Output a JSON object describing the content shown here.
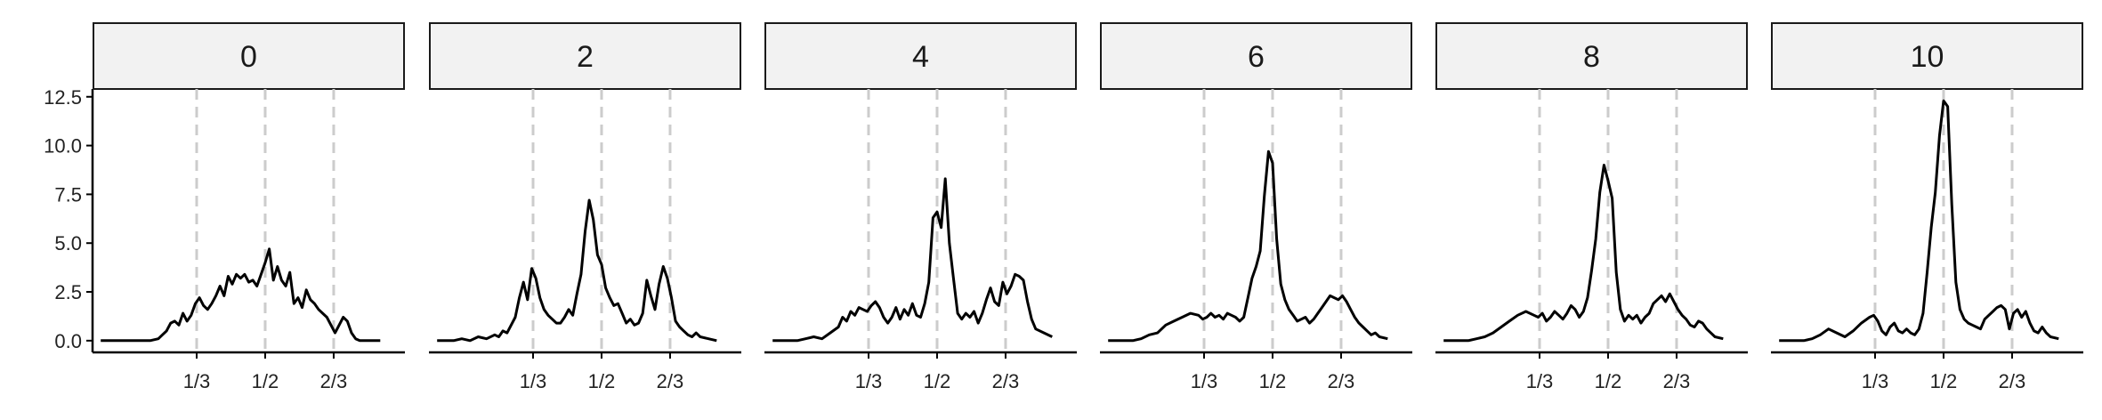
{
  "chart_data": {
    "type": "line",
    "title": "",
    "xlabel": "",
    "ylabel": "",
    "ylim": [
      -0.6,
      12.9
    ],
    "yticks": [
      0.0,
      2.5,
      5.0,
      7.5,
      10.0,
      12.5
    ],
    "ytick_labels": [
      "0.0",
      "2.5",
      "5.0",
      "7.5",
      "10.0",
      "12.5"
    ],
    "xlim": [
      0.08,
      0.84
    ],
    "xticks": [
      0.3333,
      0.5,
      0.6667
    ],
    "xtick_labels": [
      "1/3",
      "1/2",
      "2/3"
    ],
    "reference_lines": [
      0.3333,
      0.5,
      0.6667
    ],
    "grid": false,
    "colors": {
      "line": "#000000",
      "reference": "#cccccc",
      "strip_fill": "#f2f2f2",
      "strip_border": "#1a1a1a"
    },
    "panels": [
      {
        "label": "0",
        "x": [
          0.1,
          0.12,
          0.14,
          0.16,
          0.18,
          0.2,
          0.22,
          0.24,
          0.26,
          0.27,
          0.28,
          0.29,
          0.3,
          0.31,
          0.32,
          0.33,
          0.34,
          0.35,
          0.36,
          0.37,
          0.38,
          0.39,
          0.4,
          0.41,
          0.42,
          0.43,
          0.44,
          0.45,
          0.46,
          0.47,
          0.48,
          0.49,
          0.5,
          0.51,
          0.52,
          0.53,
          0.54,
          0.55,
          0.56,
          0.57,
          0.58,
          0.59,
          0.6,
          0.61,
          0.62,
          0.63,
          0.64,
          0.65,
          0.66,
          0.67,
          0.68,
          0.69,
          0.7,
          0.71,
          0.72,
          0.73,
          0.74,
          0.76,
          0.78
        ],
        "y": [
          0,
          0,
          0,
          0,
          0,
          0,
          0,
          0.1,
          0.5,
          0.9,
          1.0,
          0.8,
          1.4,
          1.0,
          1.3,
          1.9,
          2.2,
          1.8,
          1.6,
          1.9,
          2.3,
          2.8,
          2.3,
          3.3,
          2.9,
          3.4,
          3.2,
          3.4,
          3.0,
          3.1,
          2.8,
          3.4,
          4.0,
          4.7,
          3.1,
          3.8,
          3.1,
          2.8,
          3.5,
          1.9,
          2.2,
          1.7,
          2.6,
          2.1,
          1.9,
          1.6,
          1.4,
          1.2,
          0.8,
          0.4,
          0.8,
          1.2,
          1.0,
          0.4,
          0.1,
          0,
          0,
          0,
          0
        ]
      },
      {
        "label": "2",
        "x": [
          0.1,
          0.12,
          0.14,
          0.16,
          0.18,
          0.2,
          0.22,
          0.24,
          0.25,
          0.26,
          0.27,
          0.28,
          0.29,
          0.3,
          0.31,
          0.32,
          0.33,
          0.34,
          0.35,
          0.36,
          0.37,
          0.38,
          0.39,
          0.4,
          0.41,
          0.42,
          0.43,
          0.44,
          0.45,
          0.46,
          0.47,
          0.48,
          0.49,
          0.5,
          0.51,
          0.52,
          0.53,
          0.54,
          0.55,
          0.56,
          0.57,
          0.58,
          0.59,
          0.6,
          0.61,
          0.62,
          0.63,
          0.64,
          0.65,
          0.66,
          0.67,
          0.68,
          0.69,
          0.7,
          0.71,
          0.72,
          0.73,
          0.74,
          0.76,
          0.78
        ],
        "y": [
          0,
          0,
          0,
          0.1,
          0,
          0.2,
          0.1,
          0.3,
          0.2,
          0.5,
          0.4,
          0.8,
          1.2,
          2.2,
          3.0,
          2.1,
          3.7,
          3.2,
          2.2,
          1.6,
          1.3,
          1.1,
          0.9,
          0.9,
          1.2,
          1.6,
          1.3,
          2.4,
          3.4,
          5.6,
          7.2,
          6.2,
          4.4,
          3.9,
          2.7,
          2.2,
          1.8,
          1.9,
          1.4,
          0.9,
          1.1,
          0.8,
          0.9,
          1.4,
          3.1,
          2.3,
          1.6,
          2.9,
          3.8,
          3.2,
          2.2,
          1.0,
          0.7,
          0.5,
          0.3,
          0.2,
          0.4,
          0.2,
          0.1,
          0
        ]
      },
      {
        "label": "4",
        "x": [
          0.1,
          0.12,
          0.14,
          0.16,
          0.18,
          0.2,
          0.22,
          0.24,
          0.26,
          0.27,
          0.28,
          0.29,
          0.3,
          0.31,
          0.32,
          0.33,
          0.34,
          0.35,
          0.36,
          0.37,
          0.38,
          0.39,
          0.4,
          0.41,
          0.42,
          0.43,
          0.44,
          0.45,
          0.46,
          0.47,
          0.48,
          0.49,
          0.5,
          0.51,
          0.52,
          0.53,
          0.54,
          0.55,
          0.56,
          0.57,
          0.58,
          0.59,
          0.6,
          0.61,
          0.62,
          0.63,
          0.64,
          0.65,
          0.66,
          0.67,
          0.68,
          0.69,
          0.7,
          0.71,
          0.72,
          0.73,
          0.74,
          0.76,
          0.78
        ],
        "y": [
          0,
          0,
          0,
          0,
          0.1,
          0.2,
          0.1,
          0.4,
          0.7,
          1.2,
          1.0,
          1.5,
          1.3,
          1.7,
          1.6,
          1.5,
          1.8,
          2.0,
          1.7,
          1.2,
          0.9,
          1.2,
          1.7,
          1.1,
          1.6,
          1.3,
          1.9,
          1.3,
          1.2,
          1.9,
          3.0,
          6.3,
          6.6,
          5.8,
          8.3,
          5.0,
          3.2,
          1.4,
          1.1,
          1.4,
          1.2,
          1.5,
          0.9,
          1.4,
          2.1,
          2.7,
          2.0,
          1.8,
          3.0,
          2.4,
          2.8,
          3.4,
          3.3,
          3.1,
          2.0,
          1.1,
          0.6,
          0.4,
          0.2
        ]
      },
      {
        "label": "6",
        "x": [
          0.1,
          0.12,
          0.14,
          0.16,
          0.18,
          0.2,
          0.22,
          0.24,
          0.26,
          0.28,
          0.3,
          0.32,
          0.33,
          0.34,
          0.35,
          0.36,
          0.37,
          0.38,
          0.39,
          0.4,
          0.41,
          0.42,
          0.43,
          0.44,
          0.45,
          0.46,
          0.47,
          0.48,
          0.49,
          0.5,
          0.51,
          0.52,
          0.53,
          0.54,
          0.55,
          0.56,
          0.57,
          0.58,
          0.59,
          0.6,
          0.61,
          0.62,
          0.63,
          0.64,
          0.65,
          0.66,
          0.67,
          0.68,
          0.69,
          0.7,
          0.71,
          0.72,
          0.73,
          0.74,
          0.75,
          0.76,
          0.78
        ],
        "y": [
          0,
          0,
          0,
          0,
          0.1,
          0.3,
          0.4,
          0.8,
          1.0,
          1.2,
          1.4,
          1.3,
          1.1,
          1.2,
          1.4,
          1.2,
          1.3,
          1.1,
          1.4,
          1.3,
          1.2,
          1.0,
          1.2,
          2.2,
          3.2,
          3.8,
          4.6,
          7.4,
          9.7,
          9.1,
          5.2,
          2.9,
          2.1,
          1.6,
          1.3,
          1.0,
          1.1,
          1.2,
          0.9,
          1.1,
          1.4,
          1.7,
          2.0,
          2.3,
          2.2,
          2.1,
          2.3,
          2.0,
          1.6,
          1.2,
          0.9,
          0.7,
          0.5,
          0.3,
          0.4,
          0.2,
          0.1
        ]
      },
      {
        "label": "8",
        "x": [
          0.1,
          0.12,
          0.14,
          0.16,
          0.18,
          0.2,
          0.22,
          0.24,
          0.26,
          0.28,
          0.3,
          0.32,
          0.33,
          0.34,
          0.35,
          0.36,
          0.37,
          0.38,
          0.39,
          0.4,
          0.41,
          0.42,
          0.43,
          0.44,
          0.45,
          0.46,
          0.47,
          0.48,
          0.49,
          0.5,
          0.51,
          0.52,
          0.53,
          0.54,
          0.55,
          0.56,
          0.57,
          0.58,
          0.59,
          0.6,
          0.61,
          0.62,
          0.63,
          0.64,
          0.65,
          0.66,
          0.67,
          0.68,
          0.69,
          0.7,
          0.71,
          0.72,
          0.73,
          0.74,
          0.75,
          0.76,
          0.78
        ],
        "y": [
          0,
          0,
          0,
          0,
          0.1,
          0.2,
          0.4,
          0.7,
          1.0,
          1.3,
          1.5,
          1.3,
          1.2,
          1.4,
          1.0,
          1.2,
          1.5,
          1.3,
          1.1,
          1.4,
          1.8,
          1.6,
          1.2,
          1.5,
          2.2,
          3.6,
          5.2,
          7.6,
          9.0,
          8.2,
          7.3,
          3.5,
          1.6,
          1.0,
          1.3,
          1.1,
          1.3,
          0.9,
          1.2,
          1.4,
          1.9,
          2.1,
          2.3,
          2.0,
          2.4,
          2.0,
          1.6,
          1.3,
          1.1,
          0.8,
          0.7,
          1.0,
          0.9,
          0.6,
          0.4,
          0.2,
          0.1
        ]
      },
      {
        "label": "10",
        "x": [
          0.1,
          0.12,
          0.14,
          0.16,
          0.18,
          0.2,
          0.22,
          0.24,
          0.26,
          0.28,
          0.3,
          0.32,
          0.33,
          0.34,
          0.35,
          0.36,
          0.37,
          0.38,
          0.39,
          0.4,
          0.41,
          0.42,
          0.43,
          0.44,
          0.45,
          0.46,
          0.47,
          0.48,
          0.49,
          0.5,
          0.51,
          0.52,
          0.53,
          0.54,
          0.55,
          0.56,
          0.57,
          0.58,
          0.59,
          0.6,
          0.61,
          0.62,
          0.63,
          0.64,
          0.65,
          0.66,
          0.67,
          0.68,
          0.69,
          0.7,
          0.71,
          0.72,
          0.73,
          0.74,
          0.75,
          0.76,
          0.78
        ],
        "y": [
          0,
          0,
          0,
          0,
          0.1,
          0.3,
          0.6,
          0.4,
          0.2,
          0.5,
          0.9,
          1.2,
          1.3,
          1.0,
          0.5,
          0.3,
          0.7,
          0.9,
          0.5,
          0.4,
          0.6,
          0.4,
          0.3,
          0.6,
          1.4,
          3.5,
          5.8,
          7.6,
          10.5,
          12.3,
          12.0,
          7.0,
          3.0,
          1.6,
          1.1,
          0.9,
          0.8,
          0.7,
          0.6,
          1.1,
          1.3,
          1.5,
          1.7,
          1.8,
          1.6,
          0.6,
          1.4,
          1.6,
          1.2,
          1.5,
          0.9,
          0.5,
          0.4,
          0.7,
          0.4,
          0.2,
          0.1
        ]
      }
    ]
  }
}
